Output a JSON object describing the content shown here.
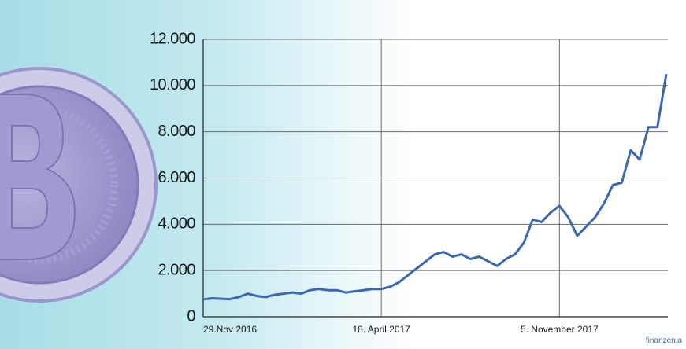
{
  "chart_data": {
    "type": "line",
    "categories": [
      "29.Nov 2016",
      null,
      null,
      null,
      null,
      null,
      null,
      null,
      null,
      null,
      null,
      null,
      null,
      null,
      null,
      null,
      null,
      null,
      null,
      null,
      "18. April 2017",
      null,
      null,
      null,
      null,
      null,
      null,
      null,
      null,
      null,
      null,
      null,
      null,
      null,
      null,
      null,
      null,
      null,
      null,
      null,
      "5. November 2017",
      null,
      null,
      null,
      null,
      null,
      null,
      null,
      null,
      null,
      null,
      null,
      null
    ],
    "values": [
      750,
      800,
      780,
      760,
      850,
      1000,
      900,
      850,
      950,
      1000,
      1050,
      1000,
      1150,
      1200,
      1150,
      1150,
      1050,
      1100,
      1150,
      1200,
      1200,
      1300,
      1500,
      1800,
      2100,
      2400,
      2700,
      2800,
      2600,
      2700,
      2500,
      2600,
      2400,
      2200,
      2500,
      2700,
      3200,
      4200,
      4100,
      4500,
      4800,
      4300,
      3500,
      3900,
      4300,
      4900,
      5700,
      5800,
      7200,
      6800,
      8200,
      8200,
      10500
    ],
    "color": "#3c68b0",
    "ylim": [
      0,
      12000
    ],
    "yticks": [
      0,
      {
        "value": 2000,
        "label": "2.000"
      },
      {
        "value": 4000,
        "label": "4.000"
      },
      {
        "value": 6000,
        "label": "6.000"
      },
      {
        "value": 8000,
        "label": "8.000"
      },
      {
        "value": 10000,
        "label": "10.000"
      },
      {
        "value": 12000,
        "label": "12.000"
      }
    ],
    "grid": true,
    "source": "finanzen.a"
  }
}
